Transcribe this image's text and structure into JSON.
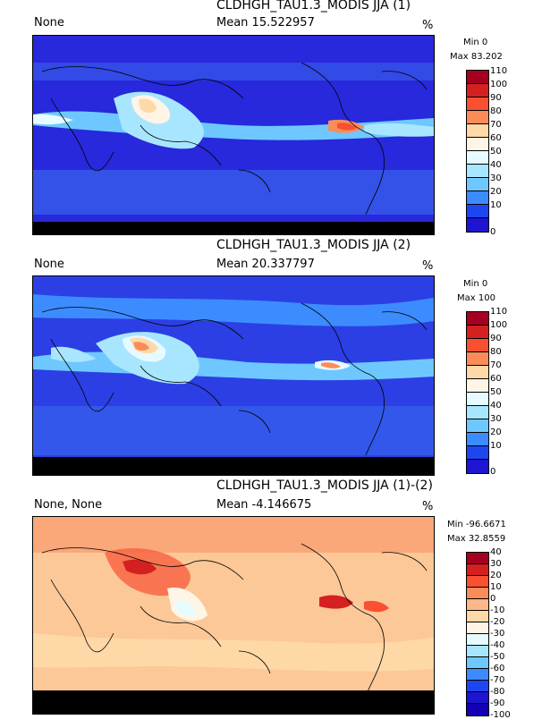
{
  "chart_data": [
    {
      "type": "heatmap",
      "title": "CLDHGH_TAU1.3_MODIS JJA (1)",
      "left_label": "None",
      "mean_label": "Mean 15.522957",
      "unit": "%",
      "min_label": "Min 0",
      "max_label": "Max 83.202",
      "colorbar_levels": [
        "110",
        "100",
        "90",
        "80",
        "70",
        "60",
        "50",
        "40",
        "30",
        "20",
        "10",
        "0"
      ],
      "colorbar_colors": [
        "#a50021",
        "#d42020",
        "#f85030",
        "#fa8c5a",
        "#ffd8a8",
        "#fff5e6",
        "#e6fbff",
        "#a8e6ff",
        "#6ec8ff",
        "#3c8cff",
        "#1e46f0",
        "#1e14d2"
      ],
      "background_color": "#2828dc",
      "features": [
        {
          "type": "high-band",
          "region": "tropics"
        },
        {
          "type": "south-asia-max",
          "region": "bay-of-bengal"
        },
        {
          "type": "central-america-max",
          "region": "east-pacific"
        }
      ]
    },
    {
      "type": "heatmap",
      "title": "CLDHGH_TAU1.3_MODIS JJA (2)",
      "left_label": "None",
      "mean_label": "Mean 20.337797",
      "unit": "%",
      "min_label": "Min 0",
      "max_label": "Max 100",
      "colorbar_levels": [
        "110",
        "100",
        "90",
        "80",
        "70",
        "60",
        "50",
        "40",
        "30",
        "20",
        "10",
        "0"
      ],
      "colorbar_colors": [
        "#a50021",
        "#d42020",
        "#f85030",
        "#fa8c5a",
        "#ffd8a8",
        "#fff5e6",
        "#e6fbff",
        "#a8e6ff",
        "#6ec8ff",
        "#3c8cff",
        "#1e46f0",
        "#1e14d2"
      ],
      "background_color": "#2c3fe4"
    },
    {
      "type": "heatmap",
      "title": "CLDHGH_TAU1.3_MODIS JJA (1)-(2)",
      "left_label": "None, None",
      "mean_label": "Mean -4.146675",
      "unit": "%",
      "min_label": "Min -96.6671",
      "max_label": "Max 32.8559",
      "colorbar_levels": [
        "40",
        "30",
        "20",
        "10",
        "0",
        "-10",
        "-20",
        "-30",
        "-40",
        "-50",
        "-60",
        "-70",
        "-80",
        "-90",
        "-100"
      ],
      "colorbar_colors": [
        "#a50021",
        "#d42020",
        "#f85030",
        "#fa8c5a",
        "#fcb888",
        "#ffd8a8",
        "#fff5e6",
        "#e6fbff",
        "#a8e6ff",
        "#6ec8ff",
        "#3c8cff",
        "#1e46f0",
        "#1e14d2",
        "#1400b4"
      ],
      "background_color": "#fcc898"
    }
  ]
}
